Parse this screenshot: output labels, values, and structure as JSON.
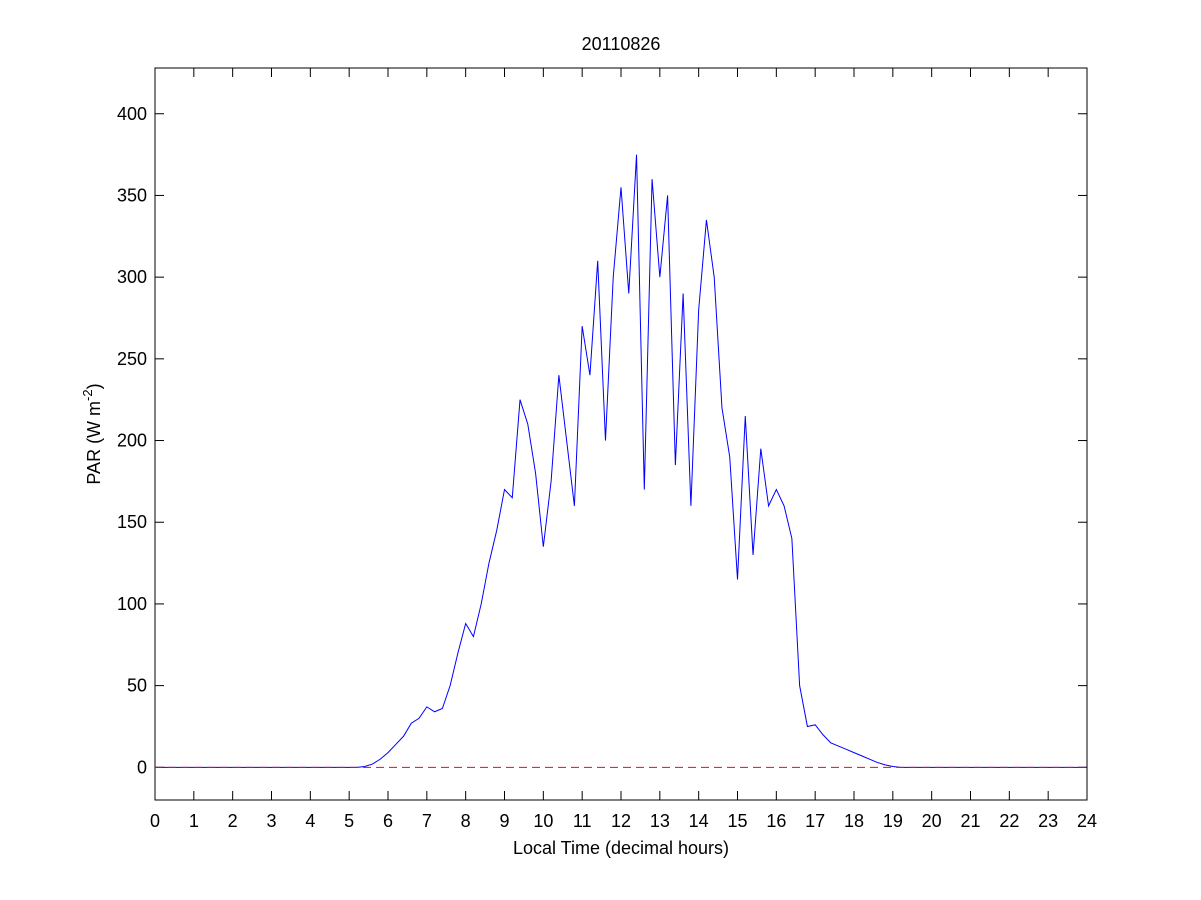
{
  "chart_data": {
    "type": "line",
    "title": "20110826",
    "xlabel": "Local Time (decimal hours)",
    "ylabel": {
      "text": "PAR (W m",
      "superscript": "-2",
      "suffix": ")"
    },
    "x": [
      0,
      5.0,
      5.2,
      5.4,
      5.6,
      5.8,
      6.0,
      6.2,
      6.4,
      6.6,
      6.8,
      7.0,
      7.2,
      7.4,
      7.6,
      7.8,
      8.0,
      8.2,
      8.4,
      8.6,
      8.8,
      9.0,
      9.2,
      9.4,
      9.6,
      9.8,
      10.0,
      10.2,
      10.4,
      10.6,
      10.8,
      11.0,
      11.2,
      11.4,
      11.6,
      11.8,
      12.0,
      12.2,
      12.4,
      12.6,
      12.8,
      13.0,
      13.2,
      13.4,
      13.6,
      13.8,
      14.0,
      14.2,
      14.4,
      14.6,
      14.8,
      15.0,
      15.2,
      15.4,
      15.6,
      15.8,
      16.0,
      16.2,
      16.4,
      16.6,
      16.8,
      17.0,
      17.2,
      17.4,
      17.6,
      17.8,
      18.0,
      18.2,
      18.4,
      18.6,
      18.8,
      19.0,
      19.2,
      24
    ],
    "series": [
      {
        "name": "PAR",
        "color": "#0000ff",
        "values": [
          0,
          0,
          0,
          0.5,
          2,
          5,
          9,
          14,
          19,
          27,
          30,
          37,
          34,
          36,
          50,
          70,
          88,
          80,
          100,
          125,
          145,
          170,
          165,
          225,
          210,
          180,
          135,
          175,
          240,
          200,
          160,
          270,
          240,
          310,
          200,
          300,
          355,
          290,
          375,
          170,
          360,
          300,
          350,
          185,
          290,
          160,
          280,
          335,
          300,
          220,
          190,
          115,
          215,
          130,
          195,
          160,
          170,
          160,
          140,
          50,
          25,
          26,
          20,
          15,
          13,
          11,
          9,
          7,
          5,
          3,
          1.5,
          0.5,
          0,
          0
        ]
      }
    ],
    "reference_line": {
      "value": 0,
      "color": "#ff0000",
      "style": "dashed"
    },
    "xlim": [
      0,
      24
    ],
    "ylim": [
      -20,
      428
    ],
    "xticks": [
      0,
      1,
      2,
      3,
      4,
      5,
      6,
      7,
      8,
      9,
      10,
      11,
      12,
      13,
      14,
      15,
      16,
      17,
      18,
      19,
      20,
      21,
      22,
      23,
      24
    ],
    "yticks": [
      0,
      50,
      100,
      150,
      200,
      250,
      300,
      350,
      400
    ],
    "grid": false
  }
}
